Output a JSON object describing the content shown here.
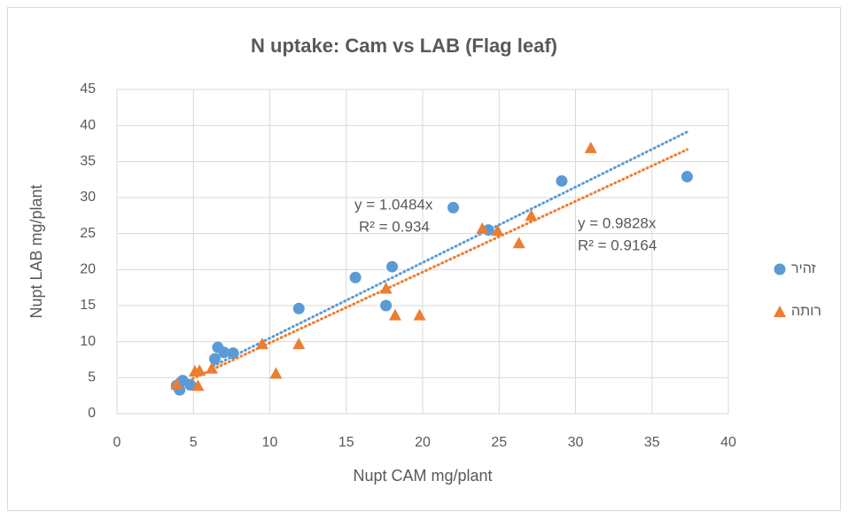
{
  "chart_data": {
    "type": "scatter",
    "title": "N uptake: Cam vs LAB (Flag leaf)",
    "x_label": "Nupt CAM mg/plant",
    "y_label": "Nupt LAB mg/plant",
    "xlim": [
      0,
      40
    ],
    "xticks": [
      0,
      5,
      10,
      15,
      20,
      25,
      30,
      35,
      40
    ],
    "ylim": [
      0,
      45
    ],
    "yticks": [
      0,
      5,
      10,
      15,
      20,
      25,
      30,
      35,
      40,
      45
    ],
    "grid": true,
    "legend": "right",
    "series": [
      {
        "name": "זהיר",
        "color": "#5b9bd5",
        "marker": "circle",
        "x": [
          3.9,
          4.1,
          4.3,
          4.8,
          6.4,
          6.6,
          7.0,
          7.6,
          11.9,
          15.6,
          17.6,
          18.0,
          22.0,
          24.3,
          29.1,
          37.3
        ],
        "values": [
          3.9,
          3.3,
          4.6,
          4.0,
          7.6,
          9.2,
          8.5,
          8.4,
          14.6,
          18.9,
          15.0,
          20.4,
          28.6,
          25.5,
          32.3,
          32.9
        ],
        "trendline": {
          "slope": 1.0484,
          "x": [
            6.3,
            37.3
          ],
          "equation": "y = 1.0484x",
          "r2": "R² = 0.934"
        }
      },
      {
        "name": "רותה",
        "color": "#ed7d31",
        "marker": "triangle",
        "x": [
          3.9,
          5.1,
          5.3,
          5.4,
          6.2,
          9.5,
          10.4,
          11.9,
          17.6,
          18.2,
          19.8,
          23.9,
          24.9,
          26.3,
          27.1,
          31.0
        ],
        "values": [
          4.1,
          5.9,
          3.9,
          6.0,
          6.3,
          9.7,
          5.6,
          9.7,
          17.4,
          13.7,
          13.7,
          25.7,
          25.4,
          23.7,
          27.5,
          36.9
        ],
        "trendline": {
          "slope": 0.9828,
          "x": [
            3.9,
            37.3
          ],
          "equation": "y = 0.9828x",
          "r2": "R² = 0.9164"
        }
      }
    ]
  }
}
